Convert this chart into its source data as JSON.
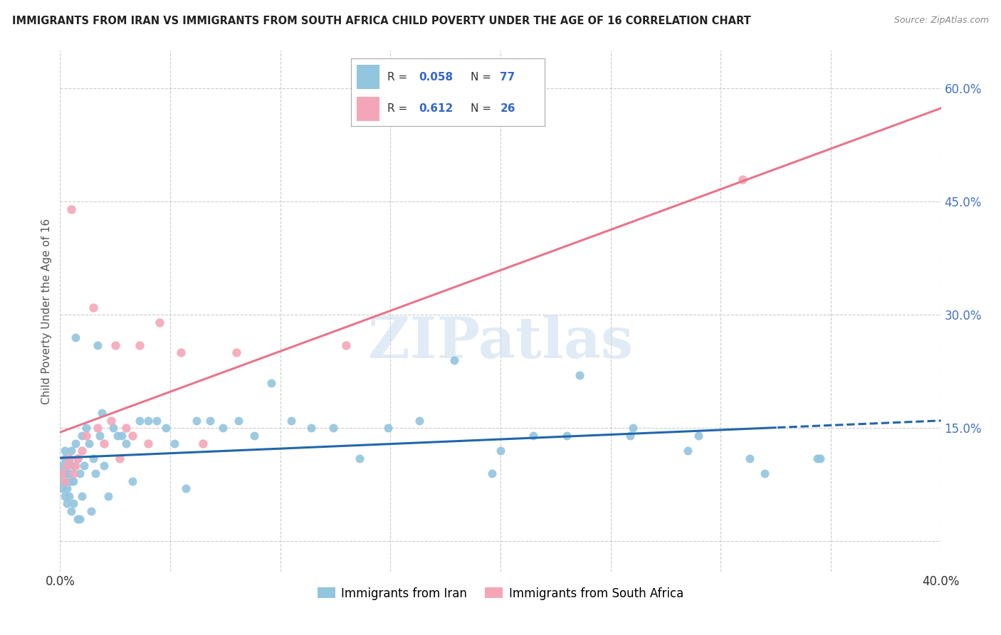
{
  "title": "IMMIGRANTS FROM IRAN VS IMMIGRANTS FROM SOUTH AFRICA CHILD POVERTY UNDER THE AGE OF 16 CORRELATION CHART",
  "source": "Source: ZipAtlas.com",
  "ylabel": "Child Poverty Under the Age of 16",
  "legend1": "Immigrants from Iran",
  "legend2": "Immigrants from South Africa",
  "color_iran": "#92c5de",
  "color_sa": "#f4a6b8",
  "color_iran_line": "#2166ac",
  "color_sa_line": "#e8748a",
  "R_iran": "0.058",
  "N_iran": "77",
  "R_sa": "0.612",
  "N_sa": "26",
  "xmin": 0.0,
  "xmax": 0.4,
  "ymin": -0.04,
  "ymax": 0.65,
  "watermark": "ZIPatlas",
  "iran_x": [
    0.001,
    0.001,
    0.001,
    0.001,
    0.002,
    0.002,
    0.002,
    0.002,
    0.003,
    0.003,
    0.003,
    0.003,
    0.004,
    0.004,
    0.004,
    0.005,
    0.005,
    0.005,
    0.006,
    0.006,
    0.006,
    0.007,
    0.007,
    0.008,
    0.008,
    0.009,
    0.009,
    0.01,
    0.01,
    0.011,
    0.012,
    0.013,
    0.014,
    0.015,
    0.016,
    0.017,
    0.018,
    0.019,
    0.02,
    0.022,
    0.024,
    0.026,
    0.028,
    0.03,
    0.033,
    0.036,
    0.04,
    0.044,
    0.048,
    0.052,
    0.057,
    0.062,
    0.068,
    0.074,
    0.081,
    0.088,
    0.096,
    0.105,
    0.114,
    0.124,
    0.136,
    0.149,
    0.163,
    0.179,
    0.196,
    0.215,
    0.236,
    0.259,
    0.285,
    0.313,
    0.344,
    0.345,
    0.32,
    0.29,
    0.26,
    0.23,
    0.2
  ],
  "iran_y": [
    0.1,
    0.09,
    0.08,
    0.07,
    0.12,
    0.11,
    0.08,
    0.06,
    0.1,
    0.09,
    0.07,
    0.05,
    0.11,
    0.09,
    0.06,
    0.12,
    0.08,
    0.04,
    0.1,
    0.08,
    0.05,
    0.13,
    0.27,
    0.11,
    0.03,
    0.09,
    0.03,
    0.14,
    0.06,
    0.1,
    0.15,
    0.13,
    0.04,
    0.11,
    0.09,
    0.26,
    0.14,
    0.17,
    0.1,
    0.06,
    0.15,
    0.14,
    0.14,
    0.13,
    0.08,
    0.16,
    0.16,
    0.16,
    0.15,
    0.13,
    0.07,
    0.16,
    0.16,
    0.15,
    0.16,
    0.14,
    0.21,
    0.16,
    0.15,
    0.15,
    0.11,
    0.15,
    0.16,
    0.24,
    0.09,
    0.14,
    0.22,
    0.14,
    0.12,
    0.11,
    0.11,
    0.11,
    0.09,
    0.14,
    0.15,
    0.14,
    0.12
  ],
  "sa_x": [
    0.001,
    0.002,
    0.003,
    0.004,
    0.005,
    0.006,
    0.007,
    0.008,
    0.01,
    0.012,
    0.015,
    0.017,
    0.02,
    0.023,
    0.025,
    0.027,
    0.03,
    0.033,
    0.036,
    0.04,
    0.045,
    0.055,
    0.065,
    0.08,
    0.31,
    0.13
  ],
  "sa_y": [
    0.09,
    0.08,
    0.1,
    0.11,
    0.44,
    0.09,
    0.1,
    0.11,
    0.12,
    0.14,
    0.31,
    0.15,
    0.13,
    0.16,
    0.26,
    0.11,
    0.15,
    0.14,
    0.26,
    0.13,
    0.29,
    0.25,
    0.13,
    0.25,
    0.48,
    0.26
  ]
}
